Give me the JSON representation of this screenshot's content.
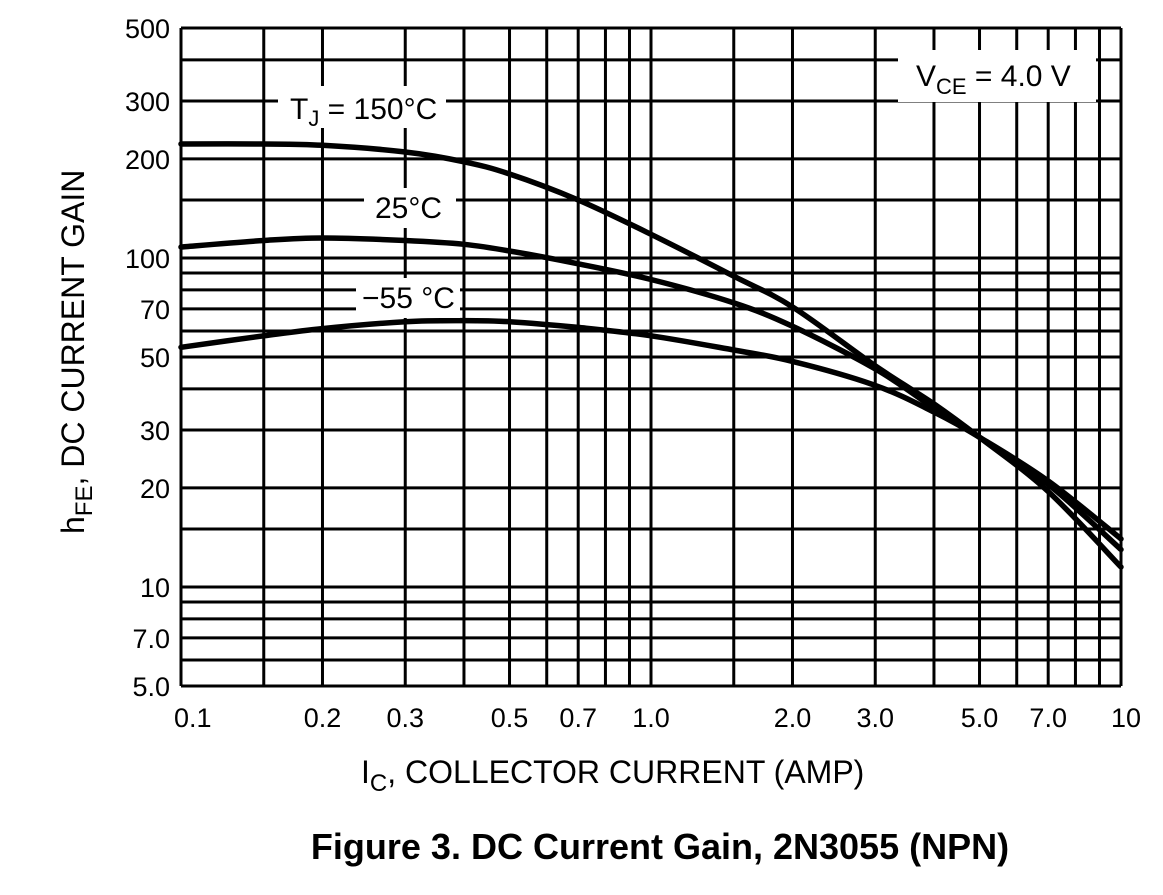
{
  "caption": "Figure 3. DC Current Gain, 2N3055 (NPN)",
  "chart_data": {
    "type": "line",
    "x_scale": "log",
    "y_scale": "log",
    "xlim": [
      0.1,
      10
    ],
    "ylim": [
      5,
      500
    ],
    "xlabel": {
      "main": "I",
      "sub": "C",
      "rest": ", COLLECTOR CURRENT (AMP)"
    },
    "ylabel": {
      "main": "h",
      "sub": "FE",
      "rest": ", DC CURRENT GAIN"
    },
    "x_ticks": [
      {
        "value": 0.1,
        "label": "0.1"
      },
      {
        "value": 0.2,
        "label": "0.2"
      },
      {
        "value": 0.3,
        "label": "0.3"
      },
      {
        "value": 0.5,
        "label": "0.5"
      },
      {
        "value": 0.7,
        "label": "0.7"
      },
      {
        "value": 1.0,
        "label": "1.0"
      },
      {
        "value": 2.0,
        "label": "2.0"
      },
      {
        "value": 3.0,
        "label": "3.0"
      },
      {
        "value": 5.0,
        "label": "5.0"
      },
      {
        "value": 7.0,
        "label": "7.0"
      },
      {
        "value": 10,
        "label": "10"
      }
    ],
    "y_ticks": [
      {
        "value": 500,
        "label": "500"
      },
      {
        "value": 300,
        "label": "300"
      },
      {
        "value": 200,
        "label": "200"
      },
      {
        "value": 100,
        "label": "100"
      },
      {
        "value": 70,
        "label": "70"
      },
      {
        "value": 50,
        "label": "50"
      },
      {
        "value": 30,
        "label": "30"
      },
      {
        "value": 20,
        "label": "20"
      },
      {
        "value": 10,
        "label": "10"
      },
      {
        "value": 7.0,
        "label": "7.0"
      },
      {
        "value": 5.0,
        "label": "5.0"
      }
    ],
    "x_grid": [
      0.1,
      0.15,
      0.2,
      0.3,
      0.4,
      0.5,
      0.6,
      0.7,
      0.8,
      0.9,
      1,
      1.5,
      2,
      3,
      4,
      5,
      6,
      7,
      8,
      9,
      10
    ],
    "y_grid": [
      5,
      6,
      7,
      8,
      9,
      10,
      15,
      20,
      30,
      40,
      50,
      60,
      70,
      80,
      90,
      100,
      150,
      200,
      300,
      400,
      500
    ],
    "grid": true,
    "series": [
      {
        "label": "T_J = 150°C",
        "x": [
          0.1,
          0.15,
          0.2,
          0.3,
          0.4,
          0.5,
          0.7,
          1.0,
          1.5,
          2.0,
          3.0,
          4.0,
          5.0,
          7.0,
          10
        ],
        "y": [
          222,
          222,
          220,
          210,
          196,
          180,
          150,
          118,
          88,
          71,
          47,
          36,
          28.5,
          19.5,
          11.5
        ]
      },
      {
        "label": "25°C",
        "x": [
          0.1,
          0.15,
          0.2,
          0.3,
          0.4,
          0.5,
          0.7,
          1.0,
          1.5,
          2.0,
          3.0,
          4.0,
          5.0,
          7.0,
          10
        ],
        "y": [
          108,
          113,
          115,
          113,
          110,
          105,
          96,
          86,
          73,
          62,
          46,
          35,
          28.5,
          20.5,
          13
        ]
      },
      {
        "label": "-55 °C",
        "x": [
          0.1,
          0.15,
          0.2,
          0.3,
          0.4,
          0.5,
          0.7,
          1.0,
          1.5,
          2.0,
          3.0,
          4.0,
          5.0,
          7.0,
          10
        ],
        "y": [
          53.5,
          58,
          61,
          64,
          64.5,
          64,
          61.5,
          58,
          52.5,
          48.5,
          41,
          34,
          28.5,
          21,
          14
        ]
      }
    ],
    "annotations": [
      {
        "main": "T",
        "sub": "J",
        "rest": " = 150°C"
      },
      {
        "text": "25°C"
      },
      {
        "text": "−55 °C"
      },
      {
        "main": "V",
        "sub": "CE",
        "rest": " = 4.0 V"
      }
    ]
  }
}
